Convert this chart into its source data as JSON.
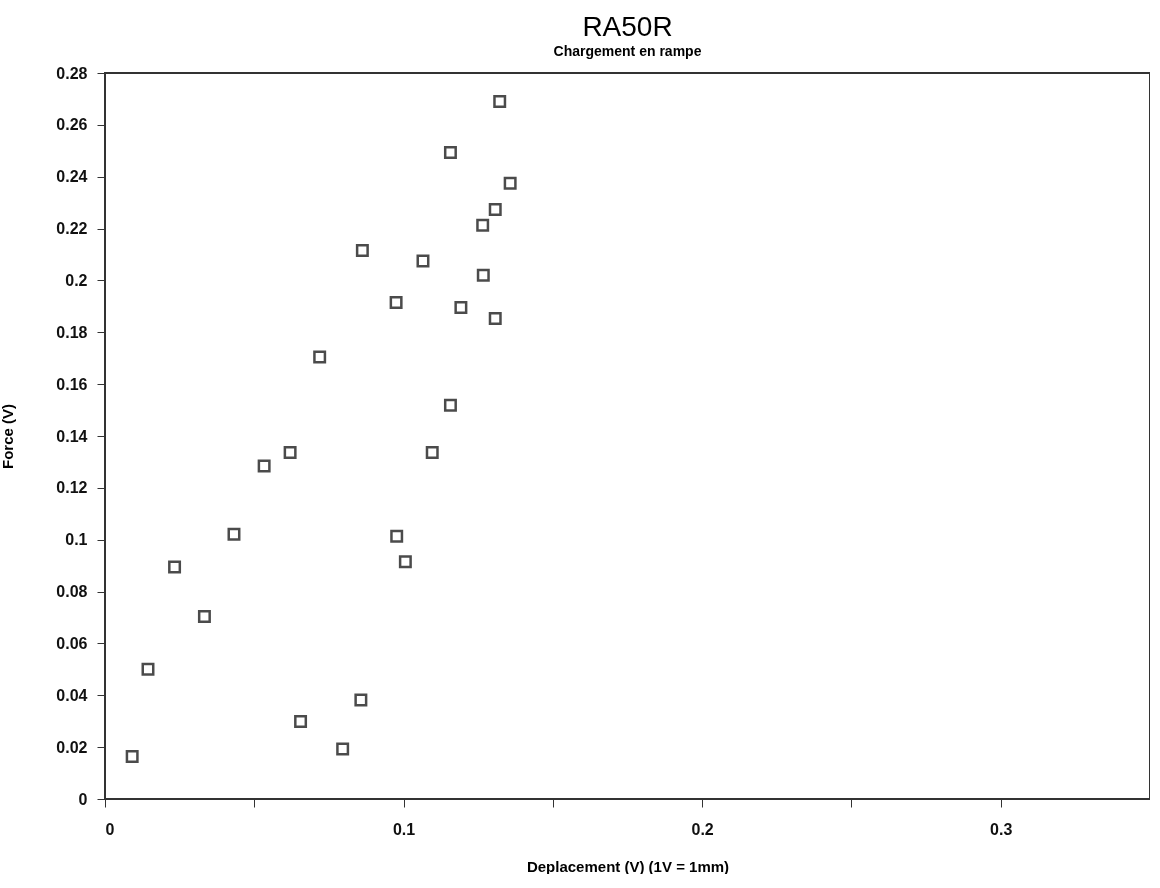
{
  "chart_data": {
    "type": "scatter",
    "title": "RA50R",
    "subtitle": "Chargement en rampe",
    "xlabel": "Deplacement (V)    (1V = 1mm)",
    "ylabel": "Force (V)",
    "x": [
      0.0091,
      0.0144,
      0.0233,
      0.0333,
      0.0432,
      0.0533,
      0.062,
      0.0655,
      0.0796,
      0.0857,
      0.0977,
      0.1006,
      0.1096,
      0.0719,
      0.0862,
      0.0975,
      0.1065,
      0.1157,
      0.1157,
      0.1192,
      0.1265,
      0.1267,
      0.1307,
      0.1307,
      0.1322,
      0.1357
    ],
    "series": [
      {
        "color": "#000000",
        "values": [
          0.0164,
          0.05,
          0.0895,
          0.0704,
          0.1021,
          0.1284,
          0.1336,
          0.0299,
          0.0193,
          0.0382,
          0.1013,
          0.0915,
          0.1336,
          0.1705,
          0.2115,
          0.1915,
          0.2075,
          0.1519,
          0.2493,
          0.1896,
          0.2213,
          0.202,
          0.2274,
          0.1853,
          0.269,
          0.2375
        ]
      }
    ],
    "xlim": [
      0,
      0.35
    ],
    "xticks": [
      0,
      {
        "value": 0.05,
        "label": null
      },
      0.1,
      {
        "value": 0.15,
        "label": null
      },
      0.2,
      {
        "value": 0.25,
        "label": null
      },
      0.3
    ],
    "ylim": [
      0,
      0.28
    ],
    "yticks": [
      0,
      0.02,
      0.04,
      0.06,
      0.08,
      0.1,
      0.12,
      0.14,
      0.16,
      0.18,
      0.2,
      0.22,
      0.24,
      0.26,
      0.28
    ],
    "marker": "square",
    "grid": false
  }
}
